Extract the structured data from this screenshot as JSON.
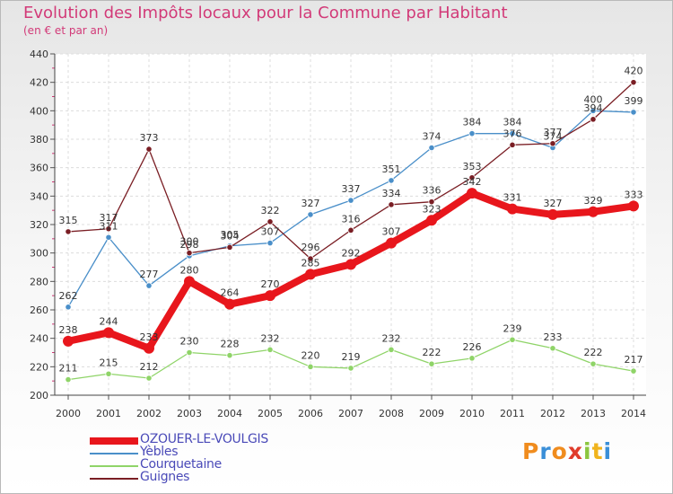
{
  "header": {
    "title": "Evolution des Impôts locaux pour la Commune par Habitant",
    "subtitle": "(en € et par an)"
  },
  "logo": {
    "text": "Proxiti",
    "colors": [
      "#f08c1e",
      "#3a8fd8",
      "#f08c1e",
      "#e03c2c",
      "#8cc63f",
      "#f0b41e",
      "#3a8fd8"
    ]
  },
  "chart_data": {
    "type": "line",
    "x": [
      2000,
      2001,
      2002,
      2003,
      2004,
      2005,
      2006,
      2007,
      2008,
      2009,
      2010,
      2011,
      2012,
      2013,
      2014
    ],
    "ylim": [
      200,
      440
    ],
    "yticks": [
      200,
      220,
      240,
      260,
      280,
      300,
      320,
      340,
      360,
      380,
      400,
      420,
      440
    ],
    "grid": true,
    "legend_position": "bottom-left",
    "series": [
      {
        "name": "OZOUER-LE-VOULGIS",
        "color": "#e8161c",
        "values": [
          238,
          244,
          233,
          280,
          264,
          270,
          285,
          292,
          307,
          323,
          342,
          331,
          327,
          329,
          333
        ]
      },
      {
        "name": "Yèbles",
        "color": "#4a8fc9",
        "values": [
          262,
          311,
          277,
          298,
          305,
          307,
          327,
          337,
          351,
          374,
          384,
          384,
          374,
          400,
          399
        ]
      },
      {
        "name": "Courquetaine",
        "color": "#8fd468",
        "values": [
          211,
          215,
          212,
          230,
          228,
          232,
          220,
          219,
          232,
          222,
          226,
          239,
          233,
          222,
          217
        ]
      },
      {
        "name": "Guignes",
        "color": "#7a1e24",
        "values": [
          315,
          317,
          373,
          300,
          304,
          322,
          296,
          316,
          334,
          336,
          353,
          376,
          377,
          394,
          420
        ]
      }
    ]
  }
}
